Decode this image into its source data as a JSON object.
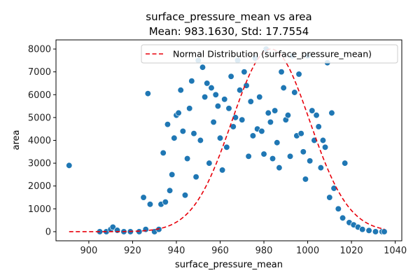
{
  "chart_data": {
    "type": "scatter",
    "title": "surface_pressure_mean vs area",
    "subtitle": "Mean: 983.1630, Std: 17.7554",
    "xlabel": "surface_pressure_mean",
    "ylabel": "area",
    "xlim": [
      885,
      1043
    ],
    "ylim": [
      -400,
      8400
    ],
    "xticks": [
      900,
      920,
      940,
      960,
      980,
      1000,
      1020,
      1040
    ],
    "yticks": [
      0,
      1000,
      2000,
      3000,
      4000,
      5000,
      6000,
      7000,
      8000
    ],
    "grid": false,
    "legend": {
      "position": "top-right",
      "entries": [
        "Normal Distribution (surface_pressure_mean)"
      ]
    },
    "colors": {
      "points": "#1f77b4",
      "points_edge": "#ffffff",
      "curve": "#e8000b"
    },
    "curve": {
      "name": "Normal Distribution (surface_pressure_mean)",
      "style": "dashed",
      "mean": 983.163,
      "std": 17.7554,
      "x_range": [
        891,
        1035
      ],
      "peak": 8000
    },
    "series": [
      {
        "name": "points",
        "points": [
          [
            891,
            2900
          ],
          [
            905,
            0
          ],
          [
            908,
            0
          ],
          [
            910,
            100
          ],
          [
            911,
            200
          ],
          [
            913,
            60
          ],
          [
            916,
            0
          ],
          [
            919,
            0
          ],
          [
            923,
            0
          ],
          [
            925,
            1500
          ],
          [
            926,
            100
          ],
          [
            927,
            6050
          ],
          [
            928,
            1200
          ],
          [
            930,
            0
          ],
          [
            932,
            100
          ],
          [
            933,
            1200
          ],
          [
            934,
            3450
          ],
          [
            935,
            1300
          ],
          [
            936,
            4700
          ],
          [
            937,
            1800
          ],
          [
            938,
            2500
          ],
          [
            939,
            4100
          ],
          [
            940,
            5100
          ],
          [
            941,
            5200
          ],
          [
            942,
            6200
          ],
          [
            943,
            4400
          ],
          [
            944,
            1600
          ],
          [
            945,
            3200
          ],
          [
            946,
            5400
          ],
          [
            947,
            6600
          ],
          [
            948,
            4300
          ],
          [
            949,
            2400
          ],
          [
            950,
            7500
          ],
          [
            951,
            4000
          ],
          [
            952,
            7200
          ],
          [
            953,
            5900
          ],
          [
            954,
            6500
          ],
          [
            955,
            3000
          ],
          [
            956,
            6300
          ],
          [
            957,
            4800
          ],
          [
            958,
            6000
          ],
          [
            959,
            5500
          ],
          [
            960,
            4100
          ],
          [
            961,
            2700
          ],
          [
            962,
            5800
          ],
          [
            963,
            3700
          ],
          [
            964,
            5400
          ],
          [
            965,
            6800
          ],
          [
            966,
            4600
          ],
          [
            967,
            5000
          ],
          [
            968,
            7500
          ],
          [
            969,
            6200
          ],
          [
            970,
            4900
          ],
          [
            971,
            7000
          ],
          [
            972,
            6400
          ],
          [
            973,
            3300
          ],
          [
            974,
            5700
          ],
          [
            975,
            4200
          ],
          [
            976,
            7600
          ],
          [
            977,
            4500
          ],
          [
            978,
            5900
          ],
          [
            979,
            4400
          ],
          [
            980,
            3400
          ],
          [
            981,
            8000
          ],
          [
            982,
            5200
          ],
          [
            983,
            4800
          ],
          [
            984,
            3200
          ],
          [
            985,
            5300
          ],
          [
            986,
            3900
          ],
          [
            987,
            2800
          ],
          [
            988,
            7000
          ],
          [
            989,
            6300
          ],
          [
            990,
            4900
          ],
          [
            991,
            5100
          ],
          [
            992,
            3300
          ],
          [
            993,
            7700
          ],
          [
            994,
            6100
          ],
          [
            995,
            4200
          ],
          [
            996,
            6900
          ],
          [
            997,
            4300
          ],
          [
            998,
            3500
          ],
          [
            999,
            2300
          ],
          [
            1000,
            7700
          ],
          [
            1001,
            3100
          ],
          [
            1002,
            5300
          ],
          [
            1003,
            4000
          ],
          [
            1004,
            5100
          ],
          [
            1005,
            4600
          ],
          [
            1006,
            2800
          ],
          [
            1007,
            4000
          ],
          [
            1008,
            3700
          ],
          [
            1009,
            7400
          ],
          [
            1010,
            1500
          ],
          [
            1011,
            5200
          ],
          [
            1012,
            1900
          ],
          [
            1014,
            1000
          ],
          [
            1016,
            600
          ],
          [
            1017,
            3000
          ],
          [
            1019,
            400
          ],
          [
            1021,
            300
          ],
          [
            1023,
            200
          ],
          [
            1025,
            100
          ],
          [
            1028,
            50
          ],
          [
            1031,
            0
          ],
          [
            1034,
            0
          ],
          [
            1035,
            0
          ]
        ]
      }
    ]
  }
}
